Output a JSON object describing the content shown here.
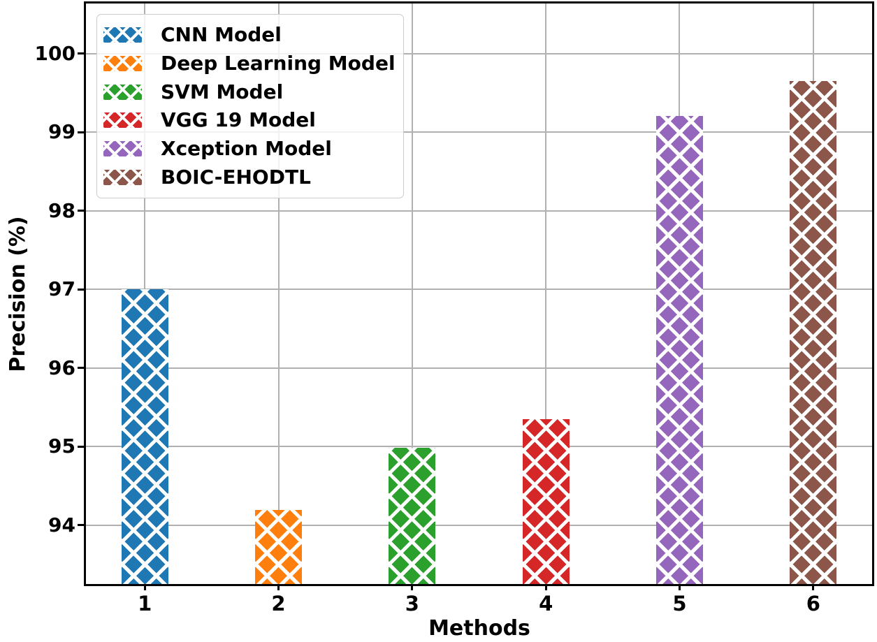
{
  "figure": {
    "background": "#ffffff",
    "text_color": "#000000"
  },
  "chart_data": {
    "type": "bar",
    "title": "",
    "xlabel": "Methods",
    "ylabel": "Precision (%)",
    "categories": [
      "1",
      "2",
      "3",
      "4",
      "5",
      "6"
    ],
    "series": [
      {
        "name": "CNN Model",
        "x": 1,
        "value": 97.0,
        "color": "#1f77b4"
      },
      {
        "name": "Deep Learning Model",
        "x": 2,
        "value": 94.19,
        "color": "#ff7f0e"
      },
      {
        "name": "SVM Model",
        "x": 3,
        "value": 94.98,
        "color": "#2ca02c"
      },
      {
        "name": "VGG 19 Model",
        "x": 4,
        "value": 95.35,
        "color": "#d62728"
      },
      {
        "name": "Xception Model",
        "x": 5,
        "value": 99.21,
        "color": "#9467bd"
      },
      {
        "name": "BOIC-EHODTL",
        "x": 6,
        "value": 99.65,
        "color": "#8c564b"
      }
    ],
    "yticks": [
      94,
      95,
      96,
      97,
      98,
      99,
      100
    ],
    "xticks": [
      1,
      2,
      3,
      4,
      5,
      6
    ],
    "ylim": [
      93.25,
      100.64
    ],
    "xlim": [
      0.56,
      6.44
    ],
    "bar_width": 0.35,
    "grid": true,
    "gridline_color": "#b0b0b0",
    "hatch": "xx",
    "hatch_color": "#ffffff",
    "legend": {
      "position": "upper left",
      "items": [
        "CNN Model",
        "Deep Learning Model",
        "SVM Model",
        "VGG 19 Model",
        "Xception Model",
        "BOIC-EHODTL"
      ]
    }
  }
}
